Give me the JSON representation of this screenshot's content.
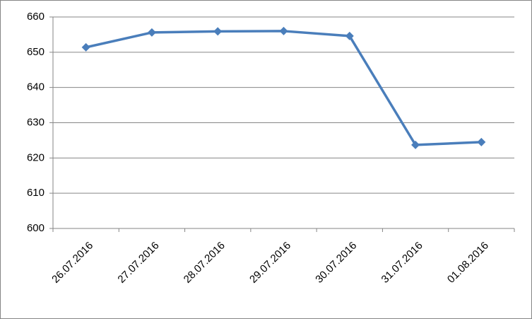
{
  "chart_data": {
    "type": "line",
    "categories": [
      "26.07.2016",
      "27.07.2016",
      "28.07.2016",
      "29.07.2016",
      "30.07.2016",
      "31.07.2016",
      "01.08.2016"
    ],
    "series": [
      {
        "color": "#4a7ebb",
        "values": [
          651.4,
          655.6,
          655.9,
          656.0,
          654.6,
          623.7,
          624.5
        ]
      }
    ],
    "ylim": [
      600,
      660
    ],
    "yticks": [
      600,
      610,
      620,
      630,
      640,
      650,
      660
    ],
    "grid": true
  }
}
